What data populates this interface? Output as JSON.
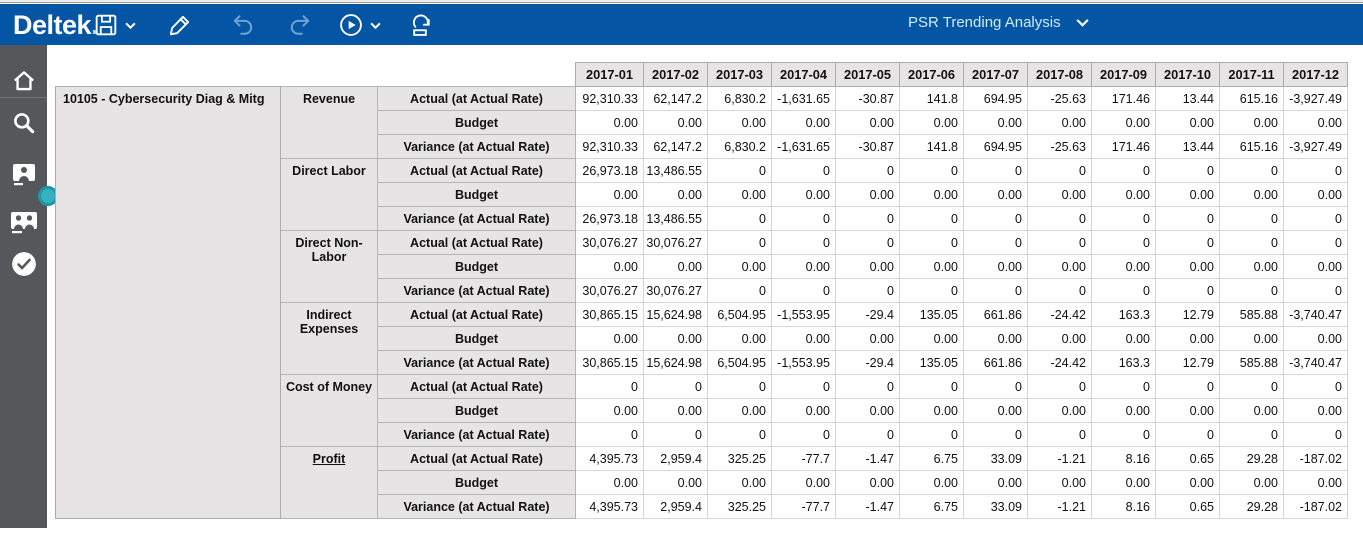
{
  "header": {
    "logo": "Deltek",
    "logo_dot": ".",
    "title_dropdown": "PSR Trending Analysis",
    "toolbar_icons": [
      {
        "icon": "save-icon",
        "has_dropdown": true
      },
      {
        "icon": "edit-pencil-icon",
        "has_dropdown": false
      },
      {
        "icon": "undo-icon",
        "has_dropdown": false,
        "disabled": true
      },
      {
        "icon": "redo-icon",
        "has_dropdown": false,
        "disabled": true
      },
      {
        "icon": "run-play-icon",
        "has_dropdown": true
      },
      {
        "icon": "export-icon",
        "has_dropdown": false
      }
    ]
  },
  "sidebar": {
    "icons": [
      "home-icon",
      "search-icon",
      "employee-badge-icon",
      "people-badge-icon",
      "approve-check-icon"
    ]
  },
  "table": {
    "project_label": "10105 - Cybersecurity Diag & Mitg",
    "months": [
      "2017-01",
      "2017-02",
      "2017-03",
      "2017-04",
      "2017-05",
      "2017-06",
      "2017-07",
      "2017-08",
      "2017-09",
      "2017-10",
      "2017-11",
      "2017-12"
    ],
    "row_labels": [
      "Actual (at Actual Rate)",
      "Budget",
      "Variance (at Actual Rate)"
    ],
    "groups": [
      {
        "category": "Revenue",
        "link": false,
        "rows": [
          [
            "92,310.33",
            "62,147.2",
            "6,830.2",
            "-1,631.65",
            "-30.87",
            "141.8",
            "694.95",
            "-25.63",
            "171.46",
            "13.44",
            "615.16",
            "-3,927.49"
          ],
          [
            "0.00",
            "0.00",
            "0.00",
            "0.00",
            "0.00",
            "0.00",
            "0.00",
            "0.00",
            "0.00",
            "0.00",
            "0.00",
            "0.00"
          ],
          [
            "92,310.33",
            "62,147.2",
            "6,830.2",
            "-1,631.65",
            "-30.87",
            "141.8",
            "694.95",
            "-25.63",
            "171.46",
            "13.44",
            "615.16",
            "-3,927.49"
          ]
        ]
      },
      {
        "category": "Direct Labor",
        "link": false,
        "rows": [
          [
            "26,973.18",
            "13,486.55",
            "0",
            "0",
            "0",
            "0",
            "0",
            "0",
            "0",
            "0",
            "0",
            "0"
          ],
          [
            "0.00",
            "0.00",
            "0.00",
            "0.00",
            "0.00",
            "0.00",
            "0.00",
            "0.00",
            "0.00",
            "0.00",
            "0.00",
            "0.00"
          ],
          [
            "26,973.18",
            "13,486.55",
            "0",
            "0",
            "0",
            "0",
            "0",
            "0",
            "0",
            "0",
            "0",
            "0"
          ]
        ]
      },
      {
        "category": "Direct Non-Labor",
        "link": false,
        "rows": [
          [
            "30,076.27",
            "30,076.27",
            "0",
            "0",
            "0",
            "0",
            "0",
            "0",
            "0",
            "0",
            "0",
            "0"
          ],
          [
            "0.00",
            "0.00",
            "0.00",
            "0.00",
            "0.00",
            "0.00",
            "0.00",
            "0.00",
            "0.00",
            "0.00",
            "0.00",
            "0.00"
          ],
          [
            "30,076.27",
            "30,076.27",
            "0",
            "0",
            "0",
            "0",
            "0",
            "0",
            "0",
            "0",
            "0",
            "0"
          ]
        ]
      },
      {
        "category": "Indirect Expenses",
        "link": false,
        "rows": [
          [
            "30,865.15",
            "15,624.98",
            "6,504.95",
            "-1,553.95",
            "-29.4",
            "135.05",
            "661.86",
            "-24.42",
            "163.3",
            "12.79",
            "585.88",
            "-3,740.47"
          ],
          [
            "0.00",
            "0.00",
            "0.00",
            "0.00",
            "0.00",
            "0.00",
            "0.00",
            "0.00",
            "0.00",
            "0.00",
            "0.00",
            "0.00"
          ],
          [
            "30,865.15",
            "15,624.98",
            "6,504.95",
            "-1,553.95",
            "-29.4",
            "135.05",
            "661.86",
            "-24.42",
            "163.3",
            "12.79",
            "585.88",
            "-3,740.47"
          ]
        ]
      },
      {
        "category": "Cost of Money",
        "link": false,
        "rows": [
          [
            "0",
            "0",
            "0",
            "0",
            "0",
            "0",
            "0",
            "0",
            "0",
            "0",
            "0",
            "0"
          ],
          [
            "0.00",
            "0.00",
            "0.00",
            "0.00",
            "0.00",
            "0.00",
            "0.00",
            "0.00",
            "0.00",
            "0.00",
            "0.00",
            "0.00"
          ],
          [
            "0",
            "0",
            "0",
            "0",
            "0",
            "0",
            "0",
            "0",
            "0",
            "0",
            "0",
            "0"
          ]
        ]
      },
      {
        "category": "Profit",
        "link": true,
        "rows": [
          [
            "4,395.73",
            "2,959.4",
            "325.25",
            "-77.7",
            "-1.47",
            "6.75",
            "33.09",
            "-1.21",
            "8.16",
            "0.65",
            "29.28",
            "-187.02"
          ],
          [
            "0.00",
            "0.00",
            "0.00",
            "0.00",
            "0.00",
            "0.00",
            "0.00",
            "0.00",
            "0.00",
            "0.00",
            "0.00",
            "0.00"
          ],
          [
            "4,395.73",
            "2,959.4",
            "325.25",
            "-77.7",
            "-1.47",
            "6.75",
            "33.09",
            "-1.21",
            "8.16",
            "0.65",
            "29.28",
            "-187.02"
          ]
        ]
      }
    ]
  }
}
